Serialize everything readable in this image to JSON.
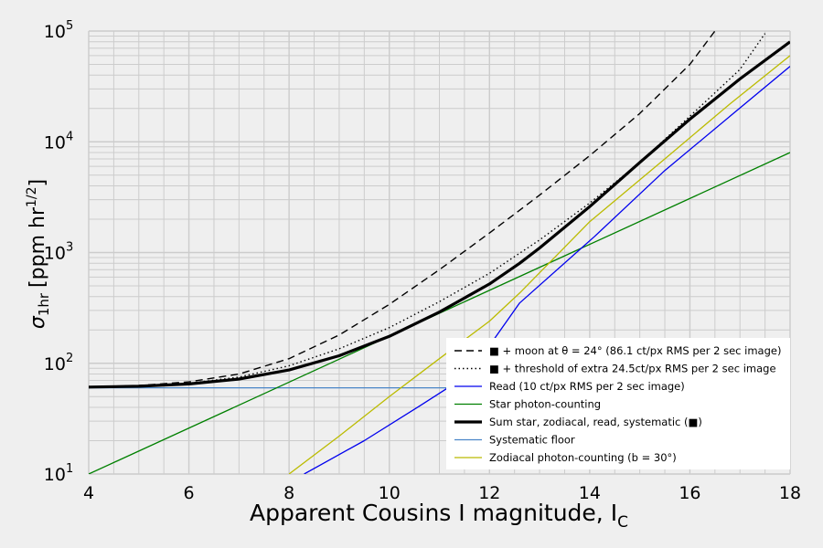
{
  "chart_data": {
    "type": "line",
    "xlabel": "Apparent Cousins I magnitude, I",
    "xlabel_sub": "C",
    "ylabel": "σ",
    "ylabel_sub": "1hr",
    "ylabel_units": "[ppm hr",
    "ylabel_units_sup": "1/2",
    "ylabel_units_close": "]",
    "xlim": [
      4,
      18
    ],
    "ylim": [
      10,
      100000
    ],
    "yscale": "log",
    "grid": true,
    "x_ticks": [
      "4",
      "6",
      "8",
      "10",
      "12",
      "14",
      "16",
      "18"
    ],
    "y_ticks": [
      {
        "base": "10",
        "exp": "1"
      },
      {
        "base": "10",
        "exp": "2"
      },
      {
        "base": "10",
        "exp": "3"
      },
      {
        "base": "10",
        "exp": "4"
      },
      {
        "base": "10",
        "exp": "5"
      }
    ],
    "legend_position": "lower-right",
    "series": [
      {
        "name": "■ + moon at θ = 24° (86.1 ct/px RMS per 2 sec image)",
        "color": "#000000",
        "style": "dashdot",
        "x": [
          4,
          5,
          6,
          7,
          8,
          9,
          10,
          11,
          12,
          13,
          14,
          15,
          16,
          16.5
        ],
        "y": [
          61,
          63,
          68,
          80,
          110,
          180,
          340,
          700,
          1500,
          3300,
          7500,
          18000,
          50000,
          100000
        ]
      },
      {
        "name": "■ + threshold of extra 24.5ct/px RMS per 2 sec image",
        "color": "#000000",
        "style": "dotted",
        "x": [
          4,
          5,
          6,
          7,
          8,
          9,
          10,
          11,
          12,
          13,
          14,
          15,
          16,
          17,
          17.5
        ],
        "y": [
          61,
          62,
          66,
          75,
          95,
          135,
          210,
          360,
          650,
          1300,
          2800,
          6500,
          17000,
          45000,
          95000
        ]
      },
      {
        "name": "Read (10 ct/px RMS per 2 sec image)",
        "color": "#0000ee",
        "style": "solid",
        "x": [
          8.3,
          9.5,
          10.6,
          11.6,
          12.6,
          14.1,
          15.5,
          16.8,
          18
        ],
        "y": [
          10,
          20,
          41,
          80,
          350,
          1400,
          5500,
          17000,
          48000
        ]
      },
      {
        "name": "Star photon-counting",
        "color": "#008000",
        "style": "solid",
        "x": [
          4,
          18
        ],
        "y": [
          10,
          8000
        ]
      },
      {
        "name": "Sum star, zodiacal, read, systematic (■)",
        "color": "#000000",
        "style": "thick",
        "x": [
          4,
          5,
          6,
          7,
          8,
          9,
          10,
          11,
          12,
          12.6,
          13,
          14,
          15,
          16,
          17,
          18
        ],
        "y": [
          61,
          62,
          65,
          72,
          87,
          117,
          175,
          290,
          520,
          800,
          1100,
          2600,
          6500,
          16000,
          37000,
          80000
        ]
      },
      {
        "name": "Systematic floor",
        "color": "#4a86c8",
        "style": "solid",
        "x": [
          4,
          18
        ],
        "y": [
          60,
          60
        ]
      },
      {
        "name": "Zodiacal photon-counting (b = 30°)",
        "color": "#bbbb00",
        "style": "solid",
        "x": [
          8,
          9,
          10,
          11,
          12,
          12.6,
          14,
          15.5,
          16.8,
          18
        ],
        "y": [
          10,
          22,
          50,
          110,
          240,
          430,
          1900,
          7000,
          22000,
          60000
        ]
      }
    ]
  }
}
